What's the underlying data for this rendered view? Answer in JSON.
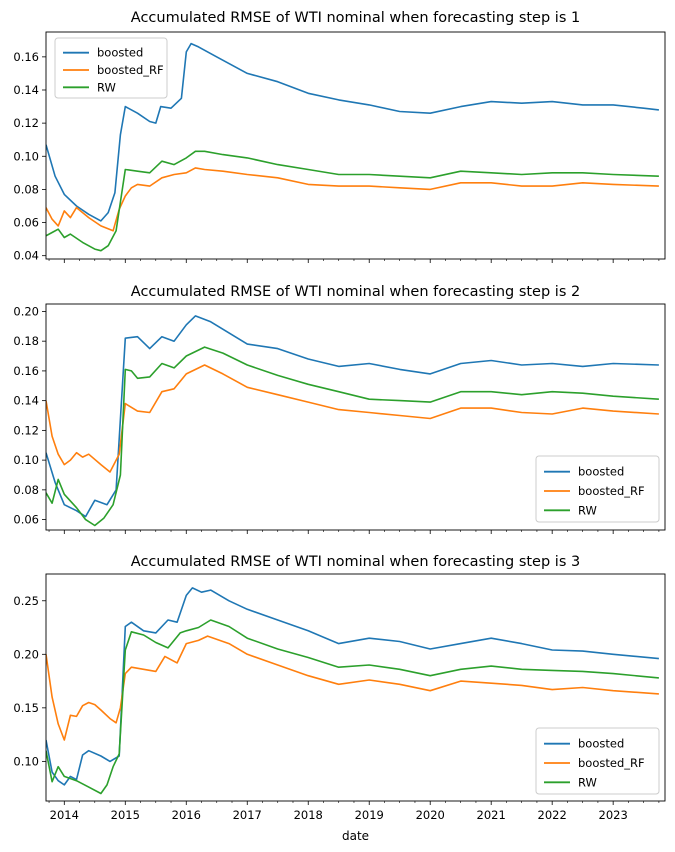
{
  "chart_data": [
    {
      "type": "line",
      "title": "Accumulated RMSE of WTI nominal when forecasting step is 1",
      "xlabel": "",
      "ylabel": "",
      "xlim": [
        2013.7,
        2023.85
      ],
      "ylim": [
        0.038,
        0.175
      ],
      "yticks": [
        0.04,
        0.06,
        0.08,
        0.1,
        0.12,
        0.14,
        0.16
      ],
      "ytick_labels": [
        "0.04",
        "0.06",
        "0.08",
        "0.10",
        "0.12",
        "0.14",
        "0.16"
      ],
      "legend": "top-left",
      "series": [
        {
          "name": "boosted",
          "color": "#1f77b4",
          "x": [
            2013.7,
            2013.85,
            2014.0,
            2014.2,
            2014.4,
            2014.6,
            2014.72,
            2014.83,
            2014.92,
            2015.0,
            2015.2,
            2015.4,
            2015.5,
            2015.58,
            2015.75,
            2015.92,
            2016.0,
            2016.08,
            2016.2,
            2016.5,
            2017.0,
            2017.5,
            2018.0,
            2018.5,
            2019.0,
            2019.5,
            2020.0,
            2020.5,
            2021.0,
            2021.5,
            2022.0,
            2022.5,
            2023.0,
            2023.5,
            2023.75
          ],
          "y": [
            0.107,
            0.088,
            0.077,
            0.07,
            0.065,
            0.061,
            0.066,
            0.078,
            0.113,
            0.13,
            0.126,
            0.121,
            0.12,
            0.13,
            0.129,
            0.135,
            0.163,
            0.168,
            0.166,
            0.16,
            0.15,
            0.145,
            0.138,
            0.134,
            0.131,
            0.127,
            0.126,
            0.13,
            0.133,
            0.132,
            0.133,
            0.131,
            0.131,
            0.129,
            0.128
          ]
        },
        {
          "name": "boosted_RF",
          "color": "#ff7f0e",
          "x": [
            2013.7,
            2013.8,
            2013.9,
            2014.0,
            2014.1,
            2014.2,
            2014.3,
            2014.4,
            2014.6,
            2014.8,
            2014.9,
            2015.0,
            2015.1,
            2015.2,
            2015.4,
            2015.6,
            2015.8,
            2016.0,
            2016.15,
            2016.3,
            2016.6,
            2017.0,
            2017.5,
            2018.0,
            2018.5,
            2019.0,
            2019.5,
            2020.0,
            2020.5,
            2021.0,
            2021.5,
            2022.0,
            2022.5,
            2023.0,
            2023.75
          ],
          "y": [
            0.069,
            0.062,
            0.058,
            0.067,
            0.063,
            0.069,
            0.066,
            0.063,
            0.058,
            0.055,
            0.068,
            0.076,
            0.081,
            0.083,
            0.082,
            0.087,
            0.089,
            0.09,
            0.093,
            0.092,
            0.091,
            0.089,
            0.087,
            0.083,
            0.082,
            0.082,
            0.081,
            0.08,
            0.084,
            0.084,
            0.082,
            0.082,
            0.084,
            0.083,
            0.082
          ]
        },
        {
          "name": "RW",
          "color": "#2ca02c",
          "x": [
            2013.7,
            2013.8,
            2013.9,
            2014.0,
            2014.1,
            2014.3,
            2014.5,
            2014.6,
            2014.72,
            2014.85,
            2015.0,
            2015.2,
            2015.4,
            2015.6,
            2015.8,
            2016.0,
            2016.15,
            2016.3,
            2016.6,
            2017.0,
            2017.5,
            2018.0,
            2018.5,
            2019.0,
            2019.5,
            2020.0,
            2020.5,
            2021.0,
            2021.5,
            2022.0,
            2022.5,
            2023.0,
            2023.75
          ],
          "y": [
            0.052,
            0.054,
            0.056,
            0.051,
            0.053,
            0.048,
            0.044,
            0.043,
            0.046,
            0.055,
            0.092,
            0.091,
            0.09,
            0.097,
            0.095,
            0.099,
            0.103,
            0.103,
            0.101,
            0.099,
            0.095,
            0.092,
            0.089,
            0.089,
            0.088,
            0.087,
            0.091,
            0.09,
            0.089,
            0.09,
            0.09,
            0.089,
            0.088
          ]
        }
      ]
    },
    {
      "type": "line",
      "title": "Accumulated RMSE of WTI nominal when forecasting step is 2",
      "xlabel": "",
      "ylabel": "",
      "xlim": [
        2013.7,
        2023.85
      ],
      "ylim": [
        0.053,
        0.205
      ],
      "yticks": [
        0.06,
        0.08,
        0.1,
        0.12,
        0.14,
        0.16,
        0.18,
        0.2
      ],
      "ytick_labels": [
        "0.06",
        "0.08",
        "0.10",
        "0.12",
        "0.14",
        "0.16",
        "0.18",
        "0.20"
      ],
      "legend": "bottom-right",
      "series": [
        {
          "name": "boosted",
          "color": "#1f77b4",
          "x": [
            2013.7,
            2013.85,
            2014.0,
            2014.2,
            2014.35,
            2014.5,
            2014.7,
            2014.85,
            2015.0,
            2015.2,
            2015.4,
            2015.6,
            2015.8,
            2016.0,
            2016.15,
            2016.4,
            2017.0,
            2017.5,
            2018.0,
            2018.5,
            2019.0,
            2019.5,
            2020.0,
            2020.5,
            2021.0,
            2021.5,
            2022.0,
            2022.5,
            2023.0,
            2023.75
          ],
          "y": [
            0.105,
            0.085,
            0.07,
            0.066,
            0.062,
            0.073,
            0.07,
            0.08,
            0.182,
            0.183,
            0.175,
            0.183,
            0.18,
            0.191,
            0.197,
            0.193,
            0.178,
            0.175,
            0.168,
            0.163,
            0.165,
            0.161,
            0.158,
            0.165,
            0.167,
            0.164,
            0.165,
            0.163,
            0.165,
            0.164
          ]
        },
        {
          "name": "boosted_RF",
          "color": "#ff7f0e",
          "x": [
            2013.7,
            2013.8,
            2013.9,
            2014.0,
            2014.1,
            2014.2,
            2014.3,
            2014.4,
            2014.6,
            2014.75,
            2014.9,
            2015.0,
            2015.2,
            2015.4,
            2015.6,
            2015.8,
            2016.0,
            2016.3,
            2016.6,
            2017.0,
            2017.5,
            2018.0,
            2018.5,
            2019.0,
            2019.5,
            2020.0,
            2020.5,
            2021.0,
            2021.5,
            2022.0,
            2022.5,
            2023.0,
            2023.75
          ],
          "y": [
            0.14,
            0.116,
            0.104,
            0.097,
            0.1,
            0.105,
            0.102,
            0.104,
            0.097,
            0.092,
            0.104,
            0.138,
            0.133,
            0.132,
            0.146,
            0.148,
            0.158,
            0.164,
            0.158,
            0.149,
            0.144,
            0.139,
            0.134,
            0.132,
            0.13,
            0.128,
            0.135,
            0.135,
            0.132,
            0.131,
            0.135,
            0.133,
            0.131
          ]
        },
        {
          "name": "RW",
          "color": "#2ca02c",
          "x": [
            2013.7,
            2013.8,
            2013.9,
            2014.0,
            2014.2,
            2014.35,
            2014.5,
            2014.65,
            2014.8,
            2014.92,
            2015.0,
            2015.1,
            2015.2,
            2015.4,
            2015.6,
            2015.8,
            2016.0,
            2016.3,
            2016.6,
            2017.0,
            2017.5,
            2018.0,
            2018.5,
            2019.0,
            2019.5,
            2020.0,
            2020.5,
            2021.0,
            2021.5,
            2022.0,
            2022.5,
            2023.0,
            2023.75
          ],
          "y": [
            0.078,
            0.071,
            0.087,
            0.077,
            0.068,
            0.06,
            0.056,
            0.061,
            0.07,
            0.09,
            0.161,
            0.16,
            0.155,
            0.156,
            0.165,
            0.162,
            0.17,
            0.176,
            0.172,
            0.164,
            0.157,
            0.151,
            0.146,
            0.141,
            0.14,
            0.139,
            0.146,
            0.146,
            0.144,
            0.146,
            0.145,
            0.143,
            0.141
          ]
        }
      ]
    },
    {
      "type": "line",
      "title": "Accumulated RMSE of WTI nominal when forecasting step is 3",
      "xlabel": "date",
      "ylabel": "",
      "xlim": [
        2013.7,
        2023.85
      ],
      "ylim": [
        0.063,
        0.275
      ],
      "yticks": [
        0.1,
        0.15,
        0.2,
        0.25
      ],
      "ytick_labels": [
        "0.10",
        "0.15",
        "0.20",
        "0.25"
      ],
      "xticks": [
        2014,
        2015,
        2016,
        2017,
        2018,
        2019,
        2020,
        2021,
        2022,
        2023
      ],
      "xtick_labels": [
        "2014",
        "2015",
        "2016",
        "2017",
        "2018",
        "2019",
        "2020",
        "2021",
        "2022",
        "2023"
      ],
      "legend": "bottom-right",
      "series": [
        {
          "name": "boosted",
          "color": "#1f77b4",
          "x": [
            2013.7,
            2013.8,
            2013.9,
            2014.0,
            2014.1,
            2014.2,
            2014.3,
            2014.4,
            2014.6,
            2014.75,
            2014.9,
            2015.0,
            2015.1,
            2015.3,
            2015.5,
            2015.7,
            2015.85,
            2016.0,
            2016.1,
            2016.25,
            2016.4,
            2016.7,
            2017.0,
            2017.5,
            2018.0,
            2018.5,
            2019.0,
            2019.5,
            2020.0,
            2020.5,
            2021.0,
            2021.5,
            2022.0,
            2022.5,
            2023.0,
            2023.75
          ],
          "y": [
            0.12,
            0.09,
            0.082,
            0.078,
            0.086,
            0.083,
            0.106,
            0.11,
            0.105,
            0.1,
            0.105,
            0.226,
            0.23,
            0.222,
            0.22,
            0.232,
            0.23,
            0.255,
            0.262,
            0.258,
            0.26,
            0.25,
            0.242,
            0.232,
            0.222,
            0.21,
            0.215,
            0.212,
            0.205,
            0.21,
            0.215,
            0.21,
            0.204,
            0.203,
            0.2,
            0.196
          ]
        },
        {
          "name": "boosted_RF",
          "color": "#ff7f0e",
          "x": [
            2013.7,
            2013.8,
            2013.9,
            2014.0,
            2014.1,
            2014.2,
            2014.3,
            2014.4,
            2014.5,
            2014.6,
            2014.75,
            2014.85,
            2014.92,
            2015.0,
            2015.1,
            2015.3,
            2015.5,
            2015.65,
            2015.85,
            2016.0,
            2016.2,
            2016.35,
            2016.7,
            2017.0,
            2017.5,
            2018.0,
            2018.5,
            2019.0,
            2019.5,
            2020.0,
            2020.5,
            2021.0,
            2021.5,
            2022.0,
            2022.5,
            2023.0,
            2023.75
          ],
          "y": [
            0.2,
            0.16,
            0.135,
            0.12,
            0.143,
            0.142,
            0.152,
            0.155,
            0.153,
            0.148,
            0.14,
            0.136,
            0.15,
            0.182,
            0.188,
            0.186,
            0.184,
            0.198,
            0.192,
            0.21,
            0.213,
            0.217,
            0.21,
            0.2,
            0.19,
            0.18,
            0.172,
            0.176,
            0.172,
            0.166,
            0.175,
            0.173,
            0.171,
            0.167,
            0.169,
            0.166,
            0.163
          ]
        },
        {
          "name": "RW",
          "color": "#2ca02c",
          "x": [
            2013.7,
            2013.8,
            2013.9,
            2014.0,
            2014.2,
            2014.4,
            2014.6,
            2014.7,
            2014.8,
            2014.9,
            2015.0,
            2015.1,
            2015.3,
            2015.5,
            2015.7,
            2015.9,
            2016.0,
            2016.2,
            2016.4,
            2016.7,
            2017.0,
            2017.5,
            2018.0,
            2018.5,
            2019.0,
            2019.5,
            2020.0,
            2020.5,
            2021.0,
            2021.5,
            2022.0,
            2022.5,
            2023.0,
            2023.75
          ],
          "y": [
            0.11,
            0.081,
            0.095,
            0.086,
            0.082,
            0.076,
            0.07,
            0.078,
            0.095,
            0.107,
            0.204,
            0.221,
            0.218,
            0.211,
            0.206,
            0.22,
            0.222,
            0.225,
            0.232,
            0.226,
            0.215,
            0.205,
            0.197,
            0.188,
            0.19,
            0.186,
            0.18,
            0.186,
            0.189,
            0.186,
            0.185,
            0.184,
            0.182,
            0.178
          ]
        }
      ]
    }
  ]
}
